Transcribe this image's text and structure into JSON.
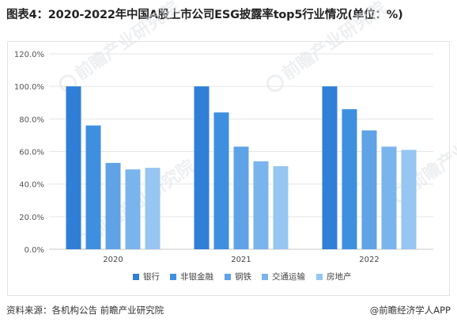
{
  "title": "图表4：2020-2022年中国A股上市公司ESG披露率top5行业情况(单位：%)",
  "footer": {
    "source": "资料来源：各机构公告 前瞻产业研究院",
    "brand": "@前瞻经济学人APP"
  },
  "watermark_text": "前瞻产业研究院",
  "chart_data": {
    "type": "bar",
    "categories": [
      "2020",
      "2021",
      "2022"
    ],
    "series": [
      {
        "name": "银行",
        "values": [
          100,
          100,
          100
        ],
        "color": "#2f7fd6"
      },
      {
        "name": "非银金融",
        "values": [
          76,
          84,
          86
        ],
        "color": "#3f8fe0"
      },
      {
        "name": "钢铁",
        "values": [
          53,
          63,
          73
        ],
        "color": "#5fa3e6"
      },
      {
        "name": "交通运输",
        "values": [
          49,
          54,
          63
        ],
        "color": "#7ab4ec"
      },
      {
        "name": "房地产",
        "values": [
          50,
          51,
          61
        ],
        "color": "#96c6f1"
      }
    ],
    "ylim": [
      0,
      120
    ],
    "yticks": [
      0,
      20,
      40,
      60,
      80,
      100,
      120
    ],
    "ytick_labels": [
      "0.0%",
      "20.0%",
      "40.0%",
      "60.0%",
      "80.0%",
      "100.0%",
      "120.0%"
    ],
    "grid": true,
    "legend": "bottom"
  }
}
